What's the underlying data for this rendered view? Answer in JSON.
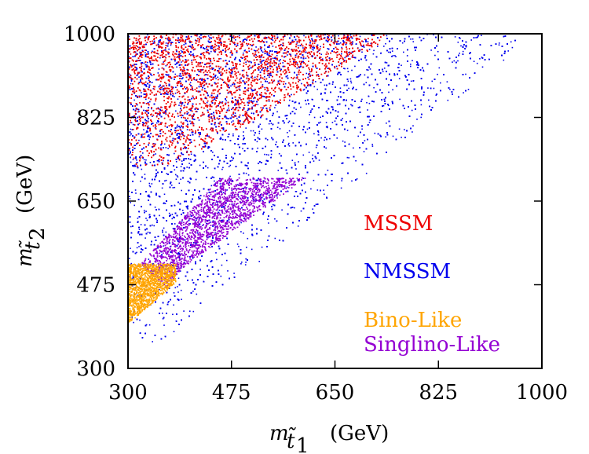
{
  "chart_data": {
    "type": "scatter",
    "title": "",
    "xlabel": {
      "symbol": "m",
      "sub": "t̃",
      "subsub": "1",
      "unit": "(GeV)"
    },
    "ylabel": {
      "symbol": "m",
      "sub": "t̃",
      "subsub": "2",
      "unit": "(GeV)"
    },
    "xlim": [
      300,
      1000
    ],
    "ylim": [
      300,
      1000
    ],
    "xticks": [
      300,
      475,
      650,
      825,
      1000
    ],
    "yticks": [
      300,
      475,
      650,
      825,
      1000
    ],
    "xtick_labels": [
      "300",
      "475",
      "650",
      "825",
      "1000"
    ],
    "ytick_labels": [
      "300",
      "475",
      "650",
      "825",
      "1000"
    ],
    "grid": false,
    "legend_position": "lower-right",
    "series": [
      {
        "name": "NMSSM",
        "color": "#0000ee",
        "region_vertices": [
          [
            300,
            1000
          ],
          [
            990,
            1000
          ],
          [
            355,
            355
          ],
          [
            300,
            360
          ]
        ],
        "note": "dense scatter of points covering the upper-left triangle above the diagonal"
      },
      {
        "name": "MSSM",
        "color": "#ee0000",
        "region_vertices": [
          [
            300,
            1000
          ],
          [
            750,
            1000
          ],
          [
            500,
            810
          ],
          [
            380,
            730
          ],
          [
            300,
            720
          ]
        ],
        "note": "points concentrated near the upper-left of the plane"
      },
      {
        "name": "Singlino-Like",
        "color": "#9400d3",
        "region_vertices": [
          [
            320,
            520
          ],
          [
            455,
            700
          ],
          [
            600,
            700
          ],
          [
            390,
            510
          ],
          [
            365,
            470
          ]
        ],
        "note": "band roughly between m_t1 = 330 and 600 GeV, m_t2 up to 700 GeV"
      },
      {
        "name": "Bino-Like",
        "color": "#ffa500",
        "region_vertices": [
          [
            300,
            520
          ],
          [
            380,
            520
          ],
          [
            380,
            480
          ],
          [
            300,
            395
          ]
        ],
        "note": "small filled region in the lower-left corner"
      }
    ]
  }
}
